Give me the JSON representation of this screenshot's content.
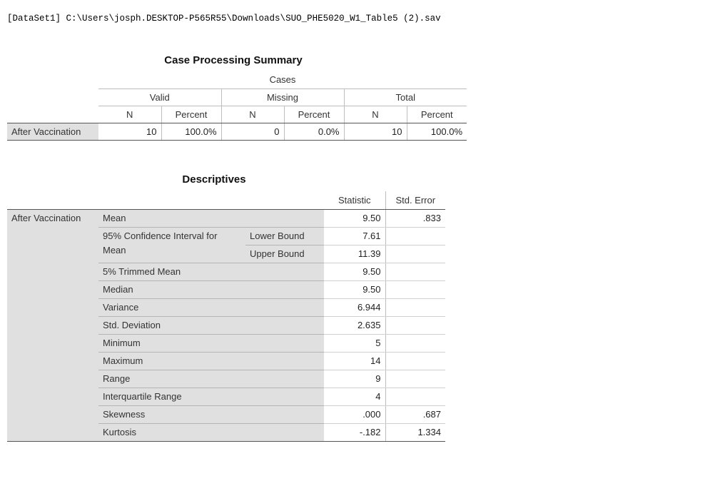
{
  "dataset_line": "[DataSet1] C:\\Users\\josph.DESKTOP-P565R55\\Downloads\\SUO_PHE5020_W1_Table5 (2).sav",
  "case_processing": {
    "title": "Case Processing Summary",
    "cases_label": "Cases",
    "groups": [
      "Valid",
      "Missing",
      "Total"
    ],
    "col_n": "N",
    "col_percent": "Percent",
    "row_label": "After Vaccination",
    "values": [
      "10",
      "100.0%",
      "0",
      "0.0%",
      "10",
      "100.0%"
    ]
  },
  "descriptives": {
    "title": "Descriptives",
    "col_statistic": "Statistic",
    "col_std_error": "Std. Error",
    "variable": "After Vaccination",
    "ci_label_line1": "95% Confidence Interval for",
    "ci_label_line2": "Mean",
    "rows": [
      {
        "label": "Mean",
        "stat": "9.50",
        "se": ".833"
      },
      {
        "label": "Lower Bound",
        "stat": "7.61",
        "se": ""
      },
      {
        "label": "Upper Bound",
        "stat": "11.39",
        "se": ""
      },
      {
        "label": "5% Trimmed Mean",
        "stat": "9.50",
        "se": ""
      },
      {
        "label": "Median",
        "stat": "9.50",
        "se": ""
      },
      {
        "label": "Variance",
        "stat": "6.944",
        "se": ""
      },
      {
        "label": "Std. Deviation",
        "stat": "2.635",
        "se": ""
      },
      {
        "label": "Minimum",
        "stat": "5",
        "se": ""
      },
      {
        "label": "Maximum",
        "stat": "14",
        "se": ""
      },
      {
        "label": "Range",
        "stat": "9",
        "se": ""
      },
      {
        "label": "Interquartile Range",
        "stat": "4",
        "se": ""
      },
      {
        "label": "Skewness",
        "stat": ".000",
        "se": ".687"
      },
      {
        "label": "Kurtosis",
        "stat": "-.182",
        "se": "1.334"
      }
    ]
  }
}
